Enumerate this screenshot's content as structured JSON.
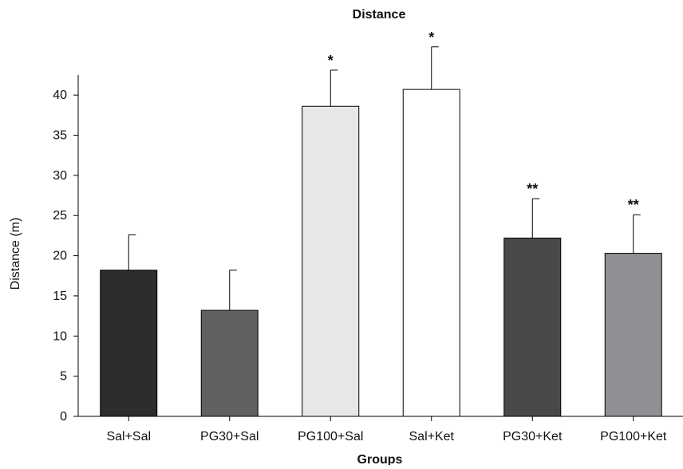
{
  "chart_data": {
    "type": "bar",
    "title": "Distance",
    "xlabel": "Groups",
    "ylabel": "Distance (m)",
    "ylim": [
      0,
      42.5
    ],
    "yticks": [
      0,
      5,
      10,
      15,
      20,
      25,
      30,
      35,
      40
    ],
    "grid": false,
    "categories": [
      "Sal+Sal",
      "PG30+Sal",
      "PG100+Sal",
      "Sal+Ket",
      "PG30+Ket",
      "PG100+Ket"
    ],
    "values": [
      18.2,
      13.2,
      38.6,
      40.7,
      22.2,
      20.3
    ],
    "errors": [
      4.4,
      5.0,
      4.5,
      5.3,
      4.9,
      4.8
    ],
    "annotations": [
      "",
      "",
      "*",
      "*",
      "**",
      "**"
    ],
    "colors": [
      "#2d2d2d",
      "#606060",
      "#e6e7e9",
      "#ffffff",
      "#48494b",
      "#8f9093"
    ]
  }
}
